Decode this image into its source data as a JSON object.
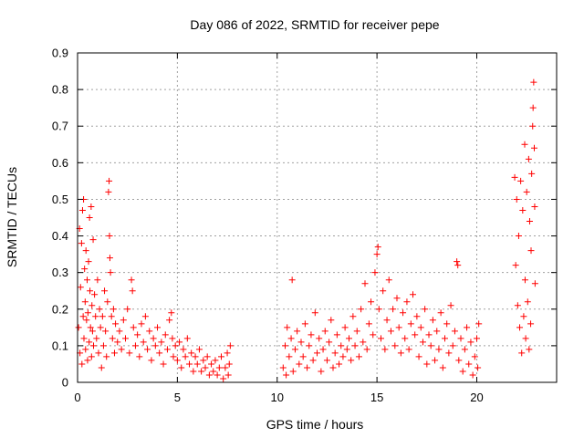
{
  "chart_data": {
    "type": "scatter",
    "title": "Day 086 of 2022, SRMTID for receiver pepe",
    "xlabel": "GPS time / hours",
    "ylabel": "SRMTID / TECUs",
    "xlim": [
      0,
      24
    ],
    "ylim": [
      0,
      0.9
    ],
    "xticks": [
      0,
      5,
      10,
      15,
      20
    ],
    "xtick_labels": [
      "0",
      "5",
      "10",
      "15",
      "20"
    ],
    "yticks": [
      0,
      0.1,
      0.2,
      0.3,
      0.4,
      0.5,
      0.6,
      0.7,
      0.8,
      0.9
    ],
    "ytick_labels": [
      "0",
      "0.1",
      "0.2",
      "0.3",
      "0.4",
      "0.5",
      "0.6",
      "0.7",
      "0.8",
      "0.9"
    ],
    "grid": true,
    "marker": "+",
    "series": [
      {
        "name": "SRMTID",
        "color": "#ff0000",
        "points": [
          [
            0.05,
            0.15
          ],
          [
            0.1,
            0.42
          ],
          [
            0.12,
            0.08
          ],
          [
            0.15,
            0.26
          ],
          [
            0.2,
            0.38
          ],
          [
            0.22,
            0.05
          ],
          [
            0.25,
            0.47
          ],
          [
            0.28,
            0.18
          ],
          [
            0.3,
            0.5
          ],
          [
            0.32,
            0.12
          ],
          [
            0.35,
            0.31
          ],
          [
            0.38,
            0.22
          ],
          [
            0.4,
            0.09
          ],
          [
            0.42,
            0.36
          ],
          [
            0.45,
            0.17
          ],
          [
            0.48,
            0.28
          ],
          [
            0.5,
            0.06
          ],
          [
            0.52,
            0.19
          ],
          [
            0.55,
            0.33
          ],
          [
            0.58,
            0.11
          ],
          [
            0.6,
            0.45
          ],
          [
            0.62,
            0.25
          ],
          [
            0.65,
            0.15
          ],
          [
            0.68,
            0.48
          ],
          [
            0.7,
            0.07
          ],
          [
            0.72,
            0.21
          ],
          [
            0.75,
            0.14
          ],
          [
            0.78,
            0.39
          ],
          [
            0.8,
            0.1
          ],
          [
            0.85,
            0.24
          ],
          [
            0.9,
            0.18
          ],
          [
            0.95,
            0.12
          ],
          [
            1.0,
            0.28
          ],
          [
            1.05,
            0.08
          ],
          [
            1.1,
            0.2
          ],
          [
            1.15,
            0.15
          ],
          [
            1.2,
            0.04
          ],
          [
            1.25,
            0.18
          ],
          [
            1.3,
            0.1
          ],
          [
            1.35,
            0.25
          ],
          [
            1.4,
            0.14
          ],
          [
            1.45,
            0.07
          ],
          [
            1.5,
            0.22
          ],
          [
            1.55,
            0.52
          ],
          [
            1.58,
            0.55
          ],
          [
            1.6,
            0.4
          ],
          [
            1.62,
            0.34
          ],
          [
            1.65,
            0.3
          ],
          [
            1.7,
            0.18
          ],
          [
            1.75,
            0.12
          ],
          [
            1.8,
            0.2
          ],
          [
            1.85,
            0.08
          ],
          [
            1.9,
            0.16
          ],
          [
            2.0,
            0.11
          ],
          [
            2.1,
            0.14
          ],
          [
            2.2,
            0.09
          ],
          [
            2.3,
            0.17
          ],
          [
            2.4,
            0.12
          ],
          [
            2.5,
            0.2
          ],
          [
            2.6,
            0.08
          ],
          [
            2.7,
            0.28
          ],
          [
            2.75,
            0.25
          ],
          [
            2.8,
            0.15
          ],
          [
            2.9,
            0.1
          ],
          [
            3.0,
            0.13
          ],
          [
            3.1,
            0.07
          ],
          [
            3.2,
            0.16
          ],
          [
            3.3,
            0.11
          ],
          [
            3.4,
            0.18
          ],
          [
            3.5,
            0.09
          ],
          [
            3.6,
            0.14
          ],
          [
            3.7,
            0.06
          ],
          [
            3.8,
            0.12
          ],
          [
            3.9,
            0.1
          ],
          [
            4.0,
            0.15
          ],
          [
            4.1,
            0.08
          ],
          [
            4.2,
            0.11
          ],
          [
            4.3,
            0.05
          ],
          [
            4.4,
            0.13
          ],
          [
            4.5,
            0.09
          ],
          [
            4.6,
            0.17
          ],
          [
            4.7,
            0.19
          ],
          [
            4.75,
            0.12
          ],
          [
            4.8,
            0.07
          ],
          [
            4.9,
            0.1
          ],
          [
            5.0,
            0.06
          ],
          [
            5.1,
            0.11
          ],
          [
            5.2,
            0.04
          ],
          [
            5.3,
            0.09
          ],
          [
            5.4,
            0.07
          ],
          [
            5.5,
            0.12
          ],
          [
            5.6,
            0.05
          ],
          [
            5.7,
            0.08
          ],
          [
            5.8,
            0.03
          ],
          [
            5.9,
            0.07
          ],
          [
            6.0,
            0.05
          ],
          [
            6.1,
            0.09
          ],
          [
            6.2,
            0.03
          ],
          [
            6.3,
            0.06
          ],
          [
            6.4,
            0.04
          ],
          [
            6.5,
            0.07
          ],
          [
            6.6,
            0.02
          ],
          [
            6.7,
            0.05
          ],
          [
            6.8,
            0.03
          ],
          [
            6.9,
            0.06
          ],
          [
            7.0,
            0.02
          ],
          [
            7.1,
            0.04
          ],
          [
            7.2,
            0.07
          ],
          [
            7.3,
            0.01
          ],
          [
            7.4,
            0.04
          ],
          [
            7.5,
            0.08
          ],
          [
            7.55,
            0.02
          ],
          [
            7.6,
            0.05
          ],
          [
            7.65,
            0.1
          ],
          [
            10.3,
            0.04
          ],
          [
            10.4,
            0.1
          ],
          [
            10.45,
            0.02
          ],
          [
            10.5,
            0.15
          ],
          [
            10.6,
            0.07
          ],
          [
            10.7,
            0.12
          ],
          [
            10.75,
            0.28
          ],
          [
            10.8,
            0.03
          ],
          [
            10.9,
            0.09
          ],
          [
            11.0,
            0.14
          ],
          [
            11.1,
            0.05
          ],
          [
            11.2,
            0.11
          ],
          [
            11.3,
            0.07
          ],
          [
            11.4,
            0.16
          ],
          [
            11.5,
            0.04
          ],
          [
            11.6,
            0.1
          ],
          [
            11.7,
            0.13
          ],
          [
            11.8,
            0.06
          ],
          [
            11.9,
            0.19
          ],
          [
            12.0,
            0.08
          ],
          [
            12.1,
            0.12
          ],
          [
            12.2,
            0.03
          ],
          [
            12.3,
            0.09
          ],
          [
            12.4,
            0.14
          ],
          [
            12.5,
            0.06
          ],
          [
            12.6,
            0.11
          ],
          [
            12.7,
            0.17
          ],
          [
            12.8,
            0.04
          ],
          [
            12.9,
            0.08
          ],
          [
            13.0,
            0.13
          ],
          [
            13.1,
            0.05
          ],
          [
            13.2,
            0.1
          ],
          [
            13.3,
            0.07
          ],
          [
            13.4,
            0.15
          ],
          [
            13.5,
            0.09
          ],
          [
            13.6,
            0.12
          ],
          [
            13.7,
            0.06
          ],
          [
            13.8,
            0.18
          ],
          [
            13.9,
            0.1
          ],
          [
            14.0,
            0.14
          ],
          [
            14.1,
            0.07
          ],
          [
            14.2,
            0.2
          ],
          [
            14.3,
            0.11
          ],
          [
            14.4,
            0.27
          ],
          [
            14.5,
            0.09
          ],
          [
            14.6,
            0.16
          ],
          [
            14.7,
            0.22
          ],
          [
            14.8,
            0.13
          ],
          [
            14.9,
            0.3
          ],
          [
            15.0,
            0.35
          ],
          [
            15.05,
            0.37
          ],
          [
            15.1,
            0.2
          ],
          [
            15.2,
            0.12
          ],
          [
            15.3,
            0.25
          ],
          [
            15.4,
            0.09
          ],
          [
            15.5,
            0.17
          ],
          [
            15.6,
            0.28
          ],
          [
            15.7,
            0.14
          ],
          [
            15.8,
            0.2
          ],
          [
            15.9,
            0.1
          ],
          [
            16.0,
            0.23
          ],
          [
            16.1,
            0.15
          ],
          [
            16.2,
            0.08
          ],
          [
            16.3,
            0.19
          ],
          [
            16.4,
            0.12
          ],
          [
            16.5,
            0.22
          ],
          [
            16.6,
            0.09
          ],
          [
            16.7,
            0.16
          ],
          [
            16.8,
            0.24
          ],
          [
            16.9,
            0.13
          ],
          [
            17.0,
            0.18
          ],
          [
            17.1,
            0.07
          ],
          [
            17.2,
            0.15
          ],
          [
            17.3,
            0.11
          ],
          [
            17.4,
            0.2
          ],
          [
            17.5,
            0.05
          ],
          [
            17.6,
            0.13
          ],
          [
            17.7,
            0.1
          ],
          [
            17.8,
            0.17
          ],
          [
            17.9,
            0.06
          ],
          [
            18.0,
            0.14
          ],
          [
            18.1,
            0.09
          ],
          [
            18.2,
            0.19
          ],
          [
            18.3,
            0.04
          ],
          [
            18.4,
            0.12
          ],
          [
            18.5,
            0.16
          ],
          [
            18.6,
            0.08
          ],
          [
            18.7,
            0.21
          ],
          [
            18.8,
            0.1
          ],
          [
            18.9,
            0.14
          ],
          [
            19.0,
            0.33
          ],
          [
            19.05,
            0.32
          ],
          [
            19.1,
            0.06
          ],
          [
            19.2,
            0.12
          ],
          [
            19.3,
            0.03
          ],
          [
            19.4,
            0.09
          ],
          [
            19.5,
            0.15
          ],
          [
            19.6,
            0.05
          ],
          [
            19.7,
            0.11
          ],
          [
            19.8,
            0.02
          ],
          [
            19.9,
            0.07
          ],
          [
            20.0,
            0.12
          ],
          [
            20.05,
            0.04
          ],
          [
            20.1,
            0.16
          ],
          [
            21.9,
            0.56
          ],
          [
            21.95,
            0.32
          ],
          [
            22.0,
            0.5
          ],
          [
            22.05,
            0.21
          ],
          [
            22.1,
            0.4
          ],
          [
            22.15,
            0.15
          ],
          [
            22.2,
            0.55
          ],
          [
            22.25,
            0.08
          ],
          [
            22.3,
            0.47
          ],
          [
            22.35,
            0.18
          ],
          [
            22.4,
            0.65
          ],
          [
            22.42,
            0.28
          ],
          [
            22.45,
            0.12
          ],
          [
            22.5,
            0.52
          ],
          [
            22.55,
            0.22
          ],
          [
            22.6,
            0.61
          ],
          [
            22.62,
            0.09
          ],
          [
            22.65,
            0.44
          ],
          [
            22.7,
            0.16
          ],
          [
            22.72,
            0.36
          ],
          [
            22.75,
            0.57
          ],
          [
            22.8,
            0.7
          ],
          [
            22.82,
            0.75
          ],
          [
            22.85,
            0.82
          ],
          [
            22.88,
            0.64
          ],
          [
            22.9,
            0.48
          ],
          [
            22.92,
            0.27
          ]
        ]
      }
    ]
  }
}
